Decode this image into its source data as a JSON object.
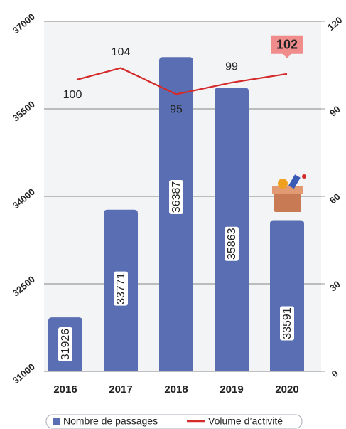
{
  "chart_data": {
    "type": "bar",
    "categories": [
      "2016",
      "2017",
      "2018",
      "2019",
      "2020"
    ],
    "series": [
      {
        "name": "Nombre de passages",
        "color": "#5a6fb3",
        "type": "bar",
        "values": [
          31926,
          33771,
          36387,
          35863,
          33591
        ]
      },
      {
        "name": "Volume d’activité",
        "color": "#d42a2a",
        "type": "line",
        "axis": "y2",
        "values": [
          100,
          104,
          95,
          99,
          102
        ]
      }
    ],
    "ylim": [
      31000,
      37000
    ],
    "yticks": [
      31000,
      32500,
      34000,
      35500,
      37000
    ],
    "y2lim": [
      0,
      120
    ],
    "y2ticks": [
      0,
      30,
      60,
      90,
      120
    ],
    "grid": true,
    "legend": "bottom"
  }
}
